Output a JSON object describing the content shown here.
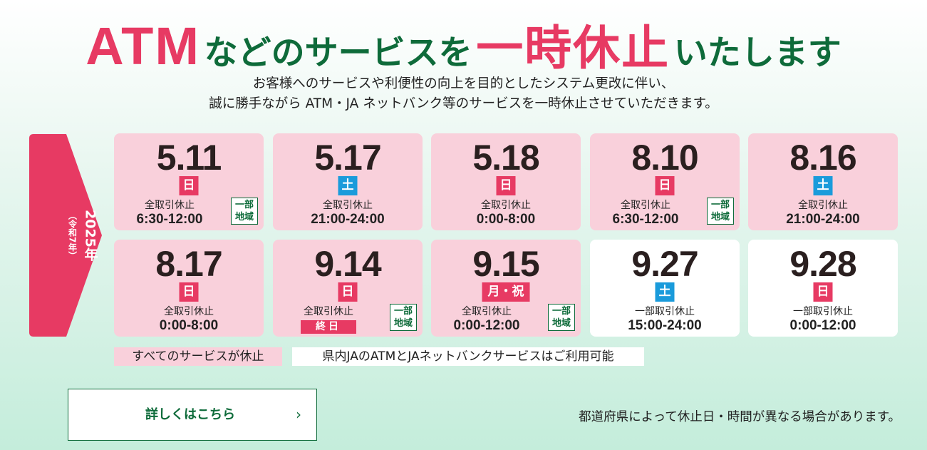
{
  "headline": {
    "atm": "ATM",
    "part1": "などのサービスを",
    "highlight": "一時休止",
    "part2": "いたします"
  },
  "subtitle": {
    "line1": "お客様へのサービスや利便性の向上を目的としたシステム更改に伴い、",
    "line2": "誠に勝手ながら ATM・JA ネットバンク等のサービスを一時休止させていただきます。"
  },
  "year": {
    "main": "2025年",
    "era": "（令和7年）"
  },
  "cards": [
    {
      "date": "5.11",
      "day": "日",
      "label": "全取引休止",
      "time": "6:30-12:00",
      "partial_line1": "一部",
      "partial_line2": "地域"
    },
    {
      "date": "5.17",
      "day": "土",
      "label": "全取引休止",
      "time": "21:00-24:00"
    },
    {
      "date": "5.18",
      "day": "日",
      "label": "全取引休止",
      "time": "0:00-8:00"
    },
    {
      "date": "8.10",
      "day": "日",
      "label": "全取引休止",
      "time": "6:30-12:00",
      "partial_line1": "一部",
      "partial_line2": "地域"
    },
    {
      "date": "8.16",
      "day": "土",
      "label": "全取引休止",
      "time": "21:00-24:00"
    },
    {
      "date": "8.17",
      "day": "日",
      "label": "全取引休止",
      "time": "0:00-8:00"
    },
    {
      "date": "9.14",
      "day": "日",
      "label": "全取引休止",
      "end_tag": "終日",
      "partial_line1": "一部",
      "partial_line2": "地域"
    },
    {
      "date": "9.15",
      "day": "月・祝",
      "label": "全取引休止",
      "time": "0:00-12:00",
      "partial_line1": "一部",
      "partial_line2": "地域"
    },
    {
      "date": "9.27",
      "day": "土",
      "label": "一部取引休止",
      "time": "15:00-24:00"
    },
    {
      "date": "9.28",
      "day": "日",
      "label": "一部取引休止",
      "time": "0:00-12:00"
    }
  ],
  "legend": {
    "all_stopped": "すべてのサービスが休止",
    "available": "県内JAのATMとJAネットバンクサービスはご利用可能"
  },
  "detail_button": {
    "label": "詳しくはこちら",
    "chevron": "›"
  },
  "note": "都道府県によって休止日・時間が異なる場合があります。",
  "colors": {
    "accent_red": "#e73a63",
    "brand_green": "#0e6b3a",
    "saturday_blue": "#1a9bdb",
    "card_pink": "#f9d0db"
  }
}
